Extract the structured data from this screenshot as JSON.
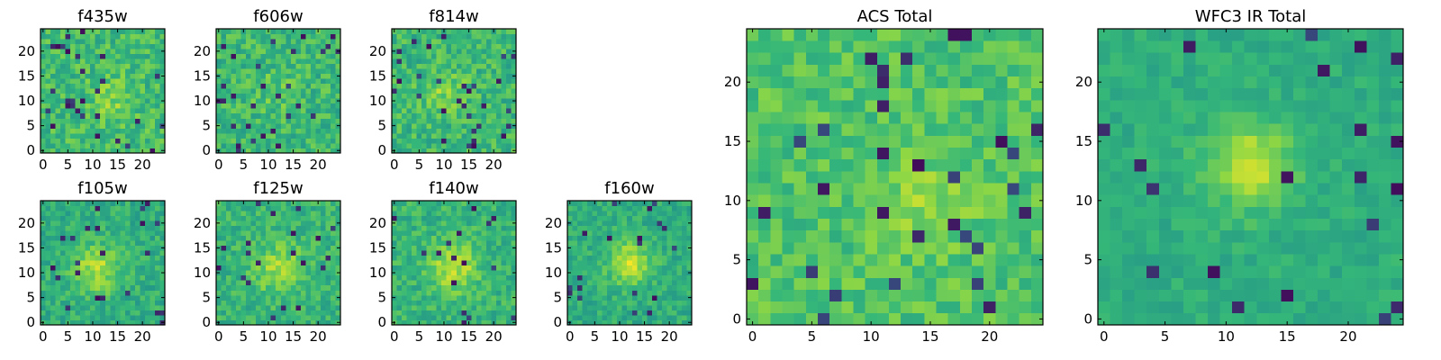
{
  "figure": {
    "background": "#ffffff",
    "colormap": "viridis",
    "colormap_stops": [
      "#440154",
      "#31688e",
      "#21918c",
      "#35b779",
      "#8fd744",
      "#fde725"
    ]
  },
  "chart_data": [
    {
      "type": "heatmap",
      "title": "f435w",
      "grid_size": 25,
      "x_ticks": [
        0,
        5,
        10,
        15,
        20
      ],
      "y_ticks": [
        0,
        5,
        10,
        15,
        20
      ],
      "xlim": [
        -0.5,
        24.5
      ],
      "ylim": [
        -0.5,
        24.5
      ],
      "peak": {
        "x": 14,
        "y": 10,
        "sigma": 3.0,
        "amplitude": 0.15
      },
      "base_level": 0.62,
      "noise_level": 0.3,
      "outlier_rate": 0.04,
      "seed": 11
    },
    {
      "type": "heatmap",
      "title": "f606w",
      "grid_size": 25,
      "x_ticks": [
        0,
        5,
        10,
        15,
        20
      ],
      "y_ticks": [
        0,
        5,
        10,
        15,
        20
      ],
      "xlim": [
        -0.5,
        24.5
      ],
      "ylim": [
        -0.5,
        24.5
      ],
      "peak": {
        "x": 12,
        "y": 12,
        "sigma": 3.0,
        "amplitude": 0.1
      },
      "base_level": 0.6,
      "noise_level": 0.3,
      "outlier_rate": 0.04,
      "seed": 23
    },
    {
      "type": "heatmap",
      "title": "f814w",
      "grid_size": 25,
      "x_ticks": [
        0,
        5,
        10,
        15,
        20
      ],
      "y_ticks": [
        0,
        5,
        10,
        15,
        20
      ],
      "xlim": [
        -0.5,
        24.5
      ],
      "ylim": [
        -0.5,
        24.5
      ],
      "peak": {
        "x": 10,
        "y": 12,
        "sigma": 3.0,
        "amplitude": 0.18
      },
      "base_level": 0.6,
      "noise_level": 0.3,
      "outlier_rate": 0.04,
      "seed": 37
    },
    {
      "type": "heatmap",
      "title": "f105w",
      "grid_size": 25,
      "x_ticks": [
        0,
        5,
        10,
        15,
        20
      ],
      "y_ticks": [
        0,
        5,
        10,
        15,
        20
      ],
      "xlim": [
        -0.5,
        24.5
      ],
      "ylim": [
        -0.5,
        24.5
      ],
      "peak": {
        "x": 11,
        "y": 11,
        "sigma": 3.5,
        "amplitude": 0.3
      },
      "base_level": 0.55,
      "noise_level": 0.25,
      "outlier_rate": 0.03,
      "seed": 41
    },
    {
      "type": "heatmap",
      "title": "f125w",
      "grid_size": 25,
      "x_ticks": [
        0,
        5,
        10,
        15,
        20
      ],
      "y_ticks": [
        0,
        5,
        10,
        15,
        20
      ],
      "xlim": [
        -0.5,
        24.5
      ],
      "ylim": [
        -0.5,
        24.5
      ],
      "peak": {
        "x": 12,
        "y": 11,
        "sigma": 3.5,
        "amplitude": 0.25
      },
      "base_level": 0.58,
      "noise_level": 0.25,
      "outlier_rate": 0.03,
      "seed": 53
    },
    {
      "type": "heatmap",
      "title": "f140w",
      "grid_size": 25,
      "x_ticks": [
        0,
        5,
        10,
        15,
        20
      ],
      "y_ticks": [
        0,
        5,
        10,
        15,
        20
      ],
      "xlim": [
        -0.5,
        24.5
      ],
      "ylim": [
        -0.5,
        24.5
      ],
      "peak": {
        "x": 12,
        "y": 11,
        "sigma": 3.5,
        "amplitude": 0.3
      },
      "base_level": 0.58,
      "noise_level": 0.25,
      "outlier_rate": 0.03,
      "seed": 67
    },
    {
      "type": "heatmap",
      "title": "f160w",
      "grid_size": 25,
      "x_ticks": [
        0,
        5,
        10,
        15,
        20
      ],
      "y_ticks": [
        0,
        5,
        10,
        15,
        20
      ],
      "xlim": [
        -0.5,
        24.5
      ],
      "ylim": [
        -0.5,
        24.5
      ],
      "peak": {
        "x": 12,
        "y": 12,
        "sigma": 3.0,
        "amplitude": 0.35
      },
      "base_level": 0.55,
      "noise_level": 0.22,
      "outlier_rate": 0.03,
      "seed": 79
    },
    {
      "type": "heatmap",
      "title": "ACS Total",
      "grid_size": 25,
      "x_ticks": [
        0,
        5,
        10,
        15,
        20
      ],
      "y_ticks": [
        0,
        5,
        10,
        15,
        20
      ],
      "xlim": [
        -0.5,
        24.5
      ],
      "ylim": [
        -0.5,
        24.5
      ],
      "peak": {
        "x": 14,
        "y": 10,
        "sigma": 3.0,
        "amplitude": 0.15
      },
      "base_level": 0.66,
      "noise_level": 0.25,
      "outlier_rate": 0.05,
      "seed": 97
    },
    {
      "type": "heatmap",
      "title": "WFC3 IR Total",
      "grid_size": 25,
      "x_ticks": [
        0,
        5,
        10,
        15,
        20
      ],
      "y_ticks": [
        0,
        5,
        10,
        15,
        20
      ],
      "xlim": [
        -0.5,
        24.5
      ],
      "ylim": [
        -0.5,
        24.5
      ],
      "peak": {
        "x": 12,
        "y": 13,
        "sigma": 2.5,
        "amplitude": 0.35
      },
      "base_level": 0.55,
      "noise_level": 0.15,
      "outlier_rate": 0.03,
      "seed": 109
    }
  ]
}
